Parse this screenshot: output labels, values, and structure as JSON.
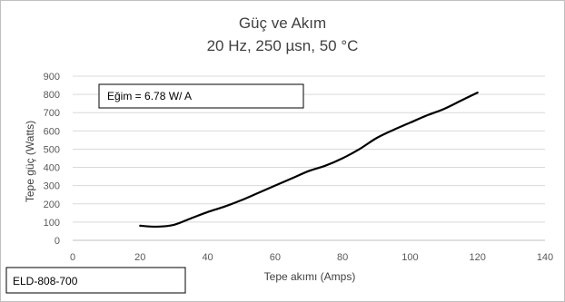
{
  "chart_data": {
    "type": "line",
    "title": "Güç  ve Akım",
    "subtitle": "20 Hz, 250 µsn, 50 °C",
    "xlabel": "Tepe akımı (Amps)",
    "ylabel": "Tepe güç (Watts)",
    "xlim": [
      0,
      140
    ],
    "ylim": [
      0,
      900
    ],
    "xticks": [
      0,
      20,
      40,
      60,
      80,
      100,
      120,
      140
    ],
    "yticks": [
      0,
      100,
      200,
      300,
      400,
      500,
      600,
      700,
      800,
      900
    ],
    "grid": true,
    "series": [
      {
        "color": "#000000",
        "x": [
          20,
          25,
          30,
          35,
          40,
          45,
          50,
          55,
          60,
          65,
          70,
          75,
          80,
          85,
          90,
          95,
          100,
          105,
          110,
          115,
          120
        ],
        "y": [
          80,
          75,
          85,
          120,
          155,
          185,
          220,
          260,
          300,
          340,
          380,
          410,
          450,
          500,
          560,
          605,
          645,
          685,
          720,
          765,
          810
        ]
      }
    ],
    "annotation": "Eğim = 6.78 W/ A"
  },
  "footer_label": "ELD-808-700"
}
